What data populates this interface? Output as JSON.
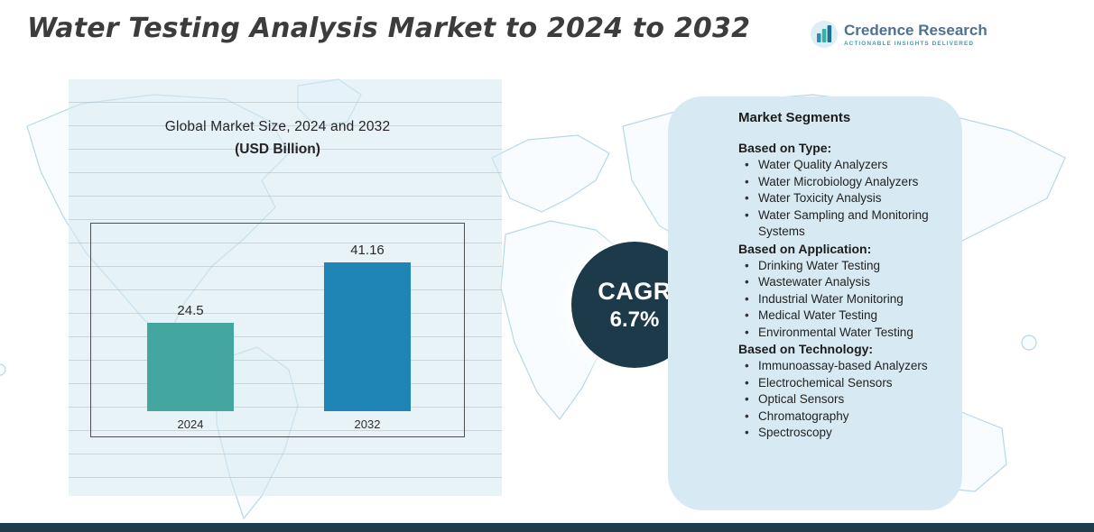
{
  "header": {
    "title": "Water Testing Analysis Market to 2024 to 2032"
  },
  "logo": {
    "name": "Credence Research",
    "tagline": "ACTIONABLE INSIGHTS DELIVERED",
    "icon": "bar-chart-circle-icon"
  },
  "chart_data": {
    "type": "bar",
    "title": "Global Market Size, 2024 and 2032",
    "subtitle": "(USD Billion)",
    "categories": [
      "2024",
      "2032"
    ],
    "values": [
      24.5,
      41.16
    ],
    "ylim": [
      0,
      50
    ],
    "grid": "horizontal",
    "colors": [
      "#43a79f",
      "#1e85b4"
    ]
  },
  "cagr": {
    "label": "CAGR",
    "value": "6.7%"
  },
  "segments": {
    "title": "Market Segments",
    "groups": [
      {
        "heading": "Based on Type:",
        "items": [
          "Water Quality Analyzers",
          "Water Microbiology Analyzers",
          "Water Toxicity Analysis",
          "Water Sampling and Monitoring Systems"
        ]
      },
      {
        "heading": "Based on Application:",
        "items": [
          "Drinking Water Testing",
          "Wastewater Analysis",
          "Industrial Water Monitoring",
          "Medical Water Testing",
          "Environmental Water Testing"
        ]
      },
      {
        "heading": "Based on Technology:",
        "items": [
          "Immunoassay-based Analyzers",
          "Electrochemical Sensors",
          "Optical Sensors",
          "Chromatography",
          "Spectroscopy"
        ]
      }
    ]
  },
  "colors": {
    "bar_2024": "#43a79f",
    "bar_2032": "#1e85b4",
    "cagr_circle": "#1c3a4a",
    "panel_blue": "#d7eaf4",
    "bottom_bar": "#1d3d4d",
    "map_line": "#b6d8e8"
  }
}
